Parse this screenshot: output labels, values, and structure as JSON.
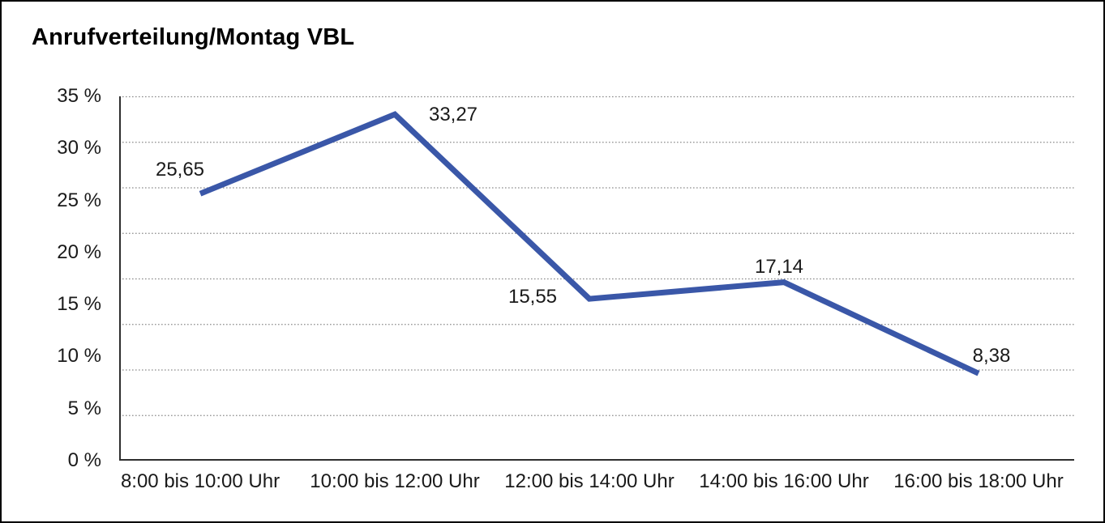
{
  "chart_data": {
    "type": "line",
    "title": "Anrufverteilung/Montag VBL",
    "categories": [
      "8:00 bis 10:00 Uhr",
      "10:00 bis 12:00 Uhr",
      "12:00 bis 14:00 Uhr",
      "14:00 bis 16:00 Uhr",
      "16:00 bis 18:00 Uhr"
    ],
    "values": [
      25.65,
      33.27,
      15.55,
      17.14,
      8.38
    ],
    "point_labels": [
      "25,65",
      "33,27",
      "15,55",
      "17,14",
      "8,38"
    ],
    "y_tick_labels": [
      "35 %",
      "30 %",
      "25 %",
      "20 %",
      "15 %",
      "10 %",
      "5 %",
      "0 %"
    ],
    "ylim": [
      0,
      35
    ],
    "xlabel": "",
    "ylabel": "",
    "legend": "none",
    "grid": "horizontal-dotted",
    "line_color": "#3A57A8",
    "axis_color": "#2e2e2e",
    "gridline_color": "#8c8c8c",
    "text_color": "#1a1a1a",
    "frame_border_color": "#000000"
  }
}
